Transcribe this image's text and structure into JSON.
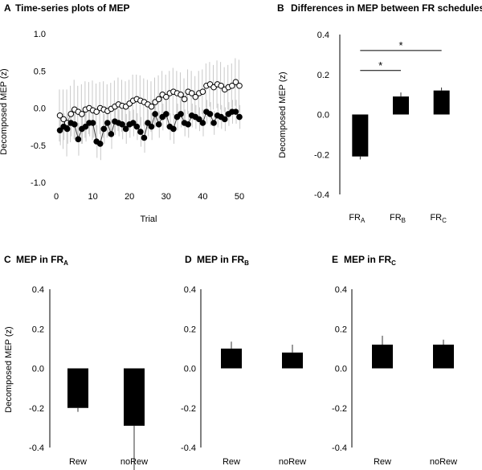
{
  "chart_data": [
    {
      "panel": "A",
      "type": "line",
      "title": "Time-series plots of MEP",
      "xlabel": "Trial",
      "ylabel": "Decomposed MEP (z)",
      "xlim": [
        0,
        50
      ],
      "ylim": [
        -1.0,
        1.0
      ],
      "x_ticks": [
        "0",
        "10",
        "20",
        "30",
        "40",
        "50"
      ],
      "y_ticks": [
        "-1.0",
        "-0.5",
        "0.0",
        "0.5",
        "1.0"
      ],
      "series": [
        {
          "name": "open circles",
          "marker": "open",
          "x": [
            1,
            2,
            3,
            4,
            5,
            6,
            7,
            8,
            9,
            10,
            11,
            12,
            13,
            14,
            15,
            16,
            17,
            18,
            19,
            20,
            21,
            22,
            23,
            24,
            25,
            26,
            27,
            28,
            29,
            30,
            31,
            32,
            33,
            34,
            35,
            36,
            37,
            38,
            39,
            40,
            41,
            42,
            43,
            44,
            45,
            46,
            47,
            48,
            49,
            50
          ],
          "values": [
            -0.1,
            -0.15,
            -0.2,
            -0.08,
            -0.02,
            -0.05,
            -0.08,
            -0.02,
            0.0,
            -0.03,
            -0.05,
            0.0,
            -0.02,
            -0.04,
            -0.01,
            0.02,
            0.05,
            0.03,
            0.02,
            0.06,
            0.1,
            0.12,
            0.1,
            0.08,
            0.05,
            0.02,
            0.08,
            0.12,
            0.18,
            0.15,
            0.2,
            0.22,
            0.2,
            0.18,
            0.12,
            0.22,
            0.2,
            0.15,
            0.2,
            0.22,
            0.3,
            0.32,
            0.28,
            0.32,
            0.3,
            0.25,
            0.28,
            0.3,
            0.35,
            0.3
          ],
          "errors": [
            0.35,
            0.4,
            0.45,
            0.38,
            0.4,
            0.35,
            0.4,
            0.38,
            0.35,
            0.4,
            0.38,
            0.35,
            0.38,
            0.36,
            0.35,
            0.35,
            0.36,
            0.35,
            0.34,
            0.32,
            0.35,
            0.33,
            0.34,
            0.32,
            0.33,
            0.34,
            0.33,
            0.32,
            0.32,
            0.3,
            0.3,
            0.32,
            0.3,
            0.3,
            0.28,
            0.3,
            0.3,
            0.28,
            0.3,
            0.3,
            0.3,
            0.3,
            0.3,
            0.32,
            0.32,
            0.3,
            0.3,
            0.3,
            0.32,
            0.35
          ]
        },
        {
          "name": "filled circles",
          "marker": "filled",
          "x": [
            1,
            2,
            3,
            4,
            5,
            6,
            7,
            8,
            9,
            10,
            11,
            12,
            13,
            14,
            15,
            16,
            17,
            18,
            19,
            20,
            21,
            22,
            23,
            24,
            25,
            26,
            27,
            28,
            29,
            30,
            31,
            32,
            33,
            34,
            35,
            36,
            37,
            38,
            39,
            40,
            41,
            42,
            43,
            44,
            45,
            46,
            47,
            48,
            49,
            50
          ],
          "values": [
            -0.3,
            -0.25,
            -0.28,
            -0.2,
            -0.22,
            -0.42,
            -0.28,
            -0.25,
            -0.2,
            -0.2,
            -0.45,
            -0.48,
            -0.28,
            -0.2,
            -0.35,
            -0.18,
            -0.2,
            -0.22,
            -0.28,
            -0.22,
            -0.2,
            -0.25,
            -0.32,
            -0.4,
            -0.2,
            -0.25,
            -0.08,
            -0.22,
            -0.12,
            -0.08,
            -0.25,
            -0.28,
            -0.12,
            -0.08,
            -0.2,
            -0.22,
            -0.1,
            -0.12,
            -0.15,
            -0.2,
            -0.05,
            -0.08,
            -0.2,
            -0.1,
            -0.12,
            -0.15,
            -0.08,
            -0.05,
            -0.05,
            -0.12
          ],
          "errors": [
            0.2,
            0.18,
            0.2,
            0.18,
            0.2,
            0.22,
            0.2,
            0.2,
            0.18,
            0.2,
            0.22,
            0.22,
            0.2,
            0.18,
            0.2,
            0.18,
            0.18,
            0.2,
            0.2,
            0.18,
            0.18,
            0.18,
            0.2,
            0.2,
            0.18,
            0.18,
            0.18,
            0.18,
            0.18,
            0.18,
            0.18,
            0.2,
            0.18,
            0.18,
            0.18,
            0.18,
            0.16,
            0.16,
            0.16,
            0.18,
            0.16,
            0.16,
            0.16,
            0.16,
            0.16,
            0.16,
            0.16,
            0.16,
            0.16,
            0.16
          ]
        }
      ]
    },
    {
      "panel": "B",
      "type": "bar",
      "title": "Differences in MEP between FR schedules",
      "ylabel": "Decomposed MEP (z)",
      "ylim": [
        -0.4,
        0.4
      ],
      "y_ticks": [
        "-0.4",
        "-0.2",
        "0.0",
        "0.2",
        "0.4"
      ],
      "categories": [
        {
          "main": "FR",
          "sub": "A"
        },
        {
          "main": "FR",
          "sub": "B"
        },
        {
          "main": "FR",
          "sub": "C"
        }
      ],
      "values": [
        -0.21,
        0.09,
        0.12
      ],
      "errors": [
        0.015,
        0.02,
        0.015
      ],
      "annotations": [
        {
          "from": 0,
          "to": 1,
          "y": 0.22,
          "label": "*"
        },
        {
          "from": 0,
          "to": 2,
          "y": 0.32,
          "label": "*"
        }
      ]
    },
    {
      "panel": "C",
      "type": "bar",
      "title": "MEP in FR",
      "title_sub": "A",
      "ylabel": "Decomposed MEP (z)",
      "ylim": [
        -0.4,
        0.4
      ],
      "y_ticks": [
        "-0.4",
        "-0.2",
        "0.0",
        "0.2",
        "0.4"
      ],
      "categories": [
        "Rew",
        "noRew"
      ],
      "values": [
        -0.2,
        -0.29
      ],
      "errors": [
        0.02,
        0.26
      ]
    },
    {
      "panel": "D",
      "type": "bar",
      "title": "MEP in FR",
      "title_sub": "B",
      "ylabel": "",
      "ylim": [
        -0.4,
        0.4
      ],
      "y_ticks": [
        "-0.4",
        "-0.2",
        "0.0",
        "0.2",
        "0.4"
      ],
      "categories": [
        "Rew",
        "noRew"
      ],
      "values": [
        0.1,
        0.08
      ],
      "errors": [
        0.035,
        0.04
      ]
    },
    {
      "panel": "E",
      "type": "bar",
      "title": "MEP in FR",
      "title_sub": "C",
      "ylabel": "",
      "ylim": [
        -0.4,
        0.4
      ],
      "y_ticks": [
        "-0.4",
        "-0.2",
        "0.0",
        "0.2",
        "0.4"
      ],
      "categories": [
        "Rew",
        "noRew"
      ],
      "values": [
        0.12,
        0.12
      ],
      "errors": [
        0.045,
        0.025
      ]
    }
  ]
}
